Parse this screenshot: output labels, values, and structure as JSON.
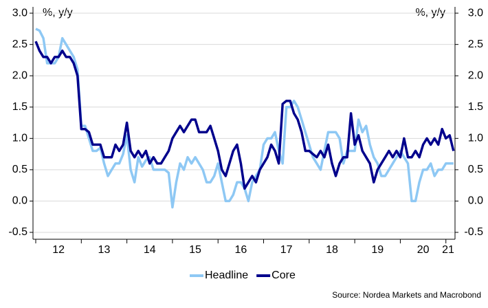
{
  "chart_data": {
    "type": "line",
    "ylabel": "%, y/y",
    "y2label": "%, y/y",
    "source": "Source: Nordea Markets and Macrobond",
    "xlim": [
      2012,
      2021.2
    ],
    "xticks": [
      {
        "value": 2012.5,
        "label": "12"
      },
      {
        "value": 2013.5,
        "label": "13"
      },
      {
        "value": 2014.5,
        "label": "14"
      },
      {
        "value": 2015.5,
        "label": "15"
      },
      {
        "value": 2016.5,
        "label": "16"
      },
      {
        "value": 2017.5,
        "label": "17"
      },
      {
        "value": 2018.5,
        "label": "18"
      },
      {
        "value": 2019.5,
        "label": "19"
      },
      {
        "value": 2020.5,
        "label": "20"
      },
      {
        "value": 2021.05,
        "label": "21"
      }
    ],
    "ylim": [
      -0.61,
      3.1
    ],
    "yticks": [
      {
        "value": 3,
        "label": "3.0"
      },
      2.5,
      {
        "value": 2,
        "label": "2.0"
      },
      1.5,
      {
        "value": 1,
        "label": "1.0"
      },
      0.5,
      {
        "value": 0,
        "label": "0.0"
      },
      -0.5
    ],
    "y2lim": [
      -0.61,
      3.1
    ],
    "y2ticks": [
      {
        "value": 3,
        "label": "3.0"
      },
      2.5,
      {
        "value": 2,
        "label": "2.0"
      },
      1.5,
      {
        "value": 1,
        "label": "1.0"
      },
      0.5,
      {
        "value": 0,
        "label": "0.0"
      },
      -0.5
    ],
    "grid": true,
    "legend": "bottom",
    "x": [
      2012,
      2012.083,
      2012.167,
      2012.25,
      2012.333,
      2012.417,
      2012.5,
      2012.583,
      2012.667,
      2012.75,
      2012.833,
      2012.917,
      2013,
      2013.083,
      2013.167,
      2013.25,
      2013.333,
      2013.417,
      2013.5,
      2013.583,
      2013.667,
      2013.75,
      2013.833,
      2013.917,
      2014,
      2014.083,
      2014.167,
      2014.25,
      2014.333,
      2014.417,
      2014.5,
      2014.583,
      2014.667,
      2014.75,
      2014.833,
      2014.917,
      2015,
      2015.083,
      2015.167,
      2015.25,
      2015.333,
      2015.417,
      2015.5,
      2015.583,
      2015.667,
      2015.75,
      2015.833,
      2015.917,
      2016,
      2016.083,
      2016.167,
      2016.25,
      2016.333,
      2016.417,
      2016.5,
      2016.583,
      2016.667,
      2016.75,
      2016.833,
      2016.917,
      2017,
      2017.083,
      2017.167,
      2017.25,
      2017.333,
      2017.417,
      2017.5,
      2017.583,
      2017.667,
      2017.75,
      2017.833,
      2017.917,
      2018,
      2018.083,
      2018.167,
      2018.25,
      2018.333,
      2018.417,
      2018.5,
      2018.583,
      2018.667,
      2018.75,
      2018.833,
      2018.917,
      2019,
      2019.083,
      2019.167,
      2019.25,
      2019.333,
      2019.417,
      2019.5,
      2019.583,
      2019.667,
      2019.75,
      2019.833,
      2019.917,
      2020,
      2020.083,
      2020.167,
      2020.25,
      2020.333,
      2020.417,
      2020.5,
      2020.583,
      2020.667,
      2020.75,
      2020.833,
      2020.917,
      2021,
      2021.083,
      2021.167
    ],
    "series": [
      {
        "name": "Headline",
        "color": "#8ec8f4",
        "values": [
          2.75,
          2.72,
          2.6,
          2.2,
          2.2,
          2.2,
          2.3,
          2.6,
          2.5,
          2.4,
          2.3,
          2.1,
          1.2,
          1.2,
          1.0,
          0.8,
          0.8,
          0.85,
          0.6,
          0.4,
          0.5,
          0.6,
          0.6,
          0.75,
          1.05,
          0.5,
          0.3,
          0.7,
          0.55,
          0.65,
          0.7,
          0.5,
          0.5,
          0.5,
          0.5,
          0.45,
          -0.1,
          0.3,
          0.6,
          0.5,
          0.7,
          0.6,
          0.7,
          0.6,
          0.5,
          0.3,
          0.3,
          0.4,
          0.6,
          0.3,
          0.0,
          0.0,
          0.1,
          0.3,
          0.3,
          0.2,
          0.0,
          0.3,
          0.4,
          0.5,
          0.9,
          1.0,
          1.0,
          1.1,
          0.8,
          0.6,
          1.5,
          1.5,
          1.6,
          1.5,
          1.3,
          1.1,
          0.9,
          0.7,
          0.6,
          0.5,
          0.8,
          1.1,
          1.1,
          1.1,
          1.0,
          0.6,
          0.8,
          0.8,
          0.8,
          1.3,
          1.1,
          1.2,
          0.9,
          0.7,
          0.6,
          0.4,
          0.4,
          0.5,
          0.6,
          0.7,
          0.8,
          0.7,
          0.6,
          0.0,
          0.0,
          0.3,
          0.5,
          0.5,
          0.6,
          0.4,
          0.5,
          0.5,
          0.6,
          0.6,
          0.6
        ]
      },
      {
        "name": "Core",
        "color": "#00008c",
        "values": [
          2.55,
          2.4,
          2.3,
          2.3,
          2.2,
          2.3,
          2.3,
          2.4,
          2.3,
          2.3,
          2.2,
          2.0,
          1.15,
          1.15,
          1.1,
          0.9,
          0.9,
          0.9,
          0.7,
          0.7,
          0.7,
          0.9,
          0.8,
          0.9,
          1.25,
          0.8,
          0.7,
          0.8,
          0.7,
          0.8,
          0.6,
          0.7,
          0.6,
          0.6,
          0.7,
          0.8,
          1.0,
          1.1,
          1.2,
          1.1,
          1.2,
          1.3,
          1.3,
          1.1,
          1.1,
          1.1,
          1.2,
          1.0,
          0.8,
          0.5,
          0.4,
          0.6,
          0.8,
          0.9,
          0.6,
          0.2,
          0.3,
          0.4,
          0.3,
          0.5,
          0.6,
          0.7,
          0.9,
          0.8,
          0.6,
          1.55,
          1.6,
          1.6,
          1.4,
          1.3,
          1.1,
          0.8,
          0.8,
          0.75,
          0.7,
          0.8,
          0.7,
          0.9,
          0.6,
          0.4,
          0.6,
          0.7,
          0.7,
          1.4,
          0.9,
          1.05,
          0.8,
          0.7,
          0.6,
          0.3,
          0.5,
          0.6,
          0.7,
          0.8,
          0.7,
          0.8,
          0.7,
          1.0,
          0.7,
          0.7,
          0.8,
          0.7,
          0.9,
          1.0,
          0.9,
          1.0,
          0.9,
          1.15,
          1.0,
          1.05,
          0.8
        ]
      }
    ]
  }
}
